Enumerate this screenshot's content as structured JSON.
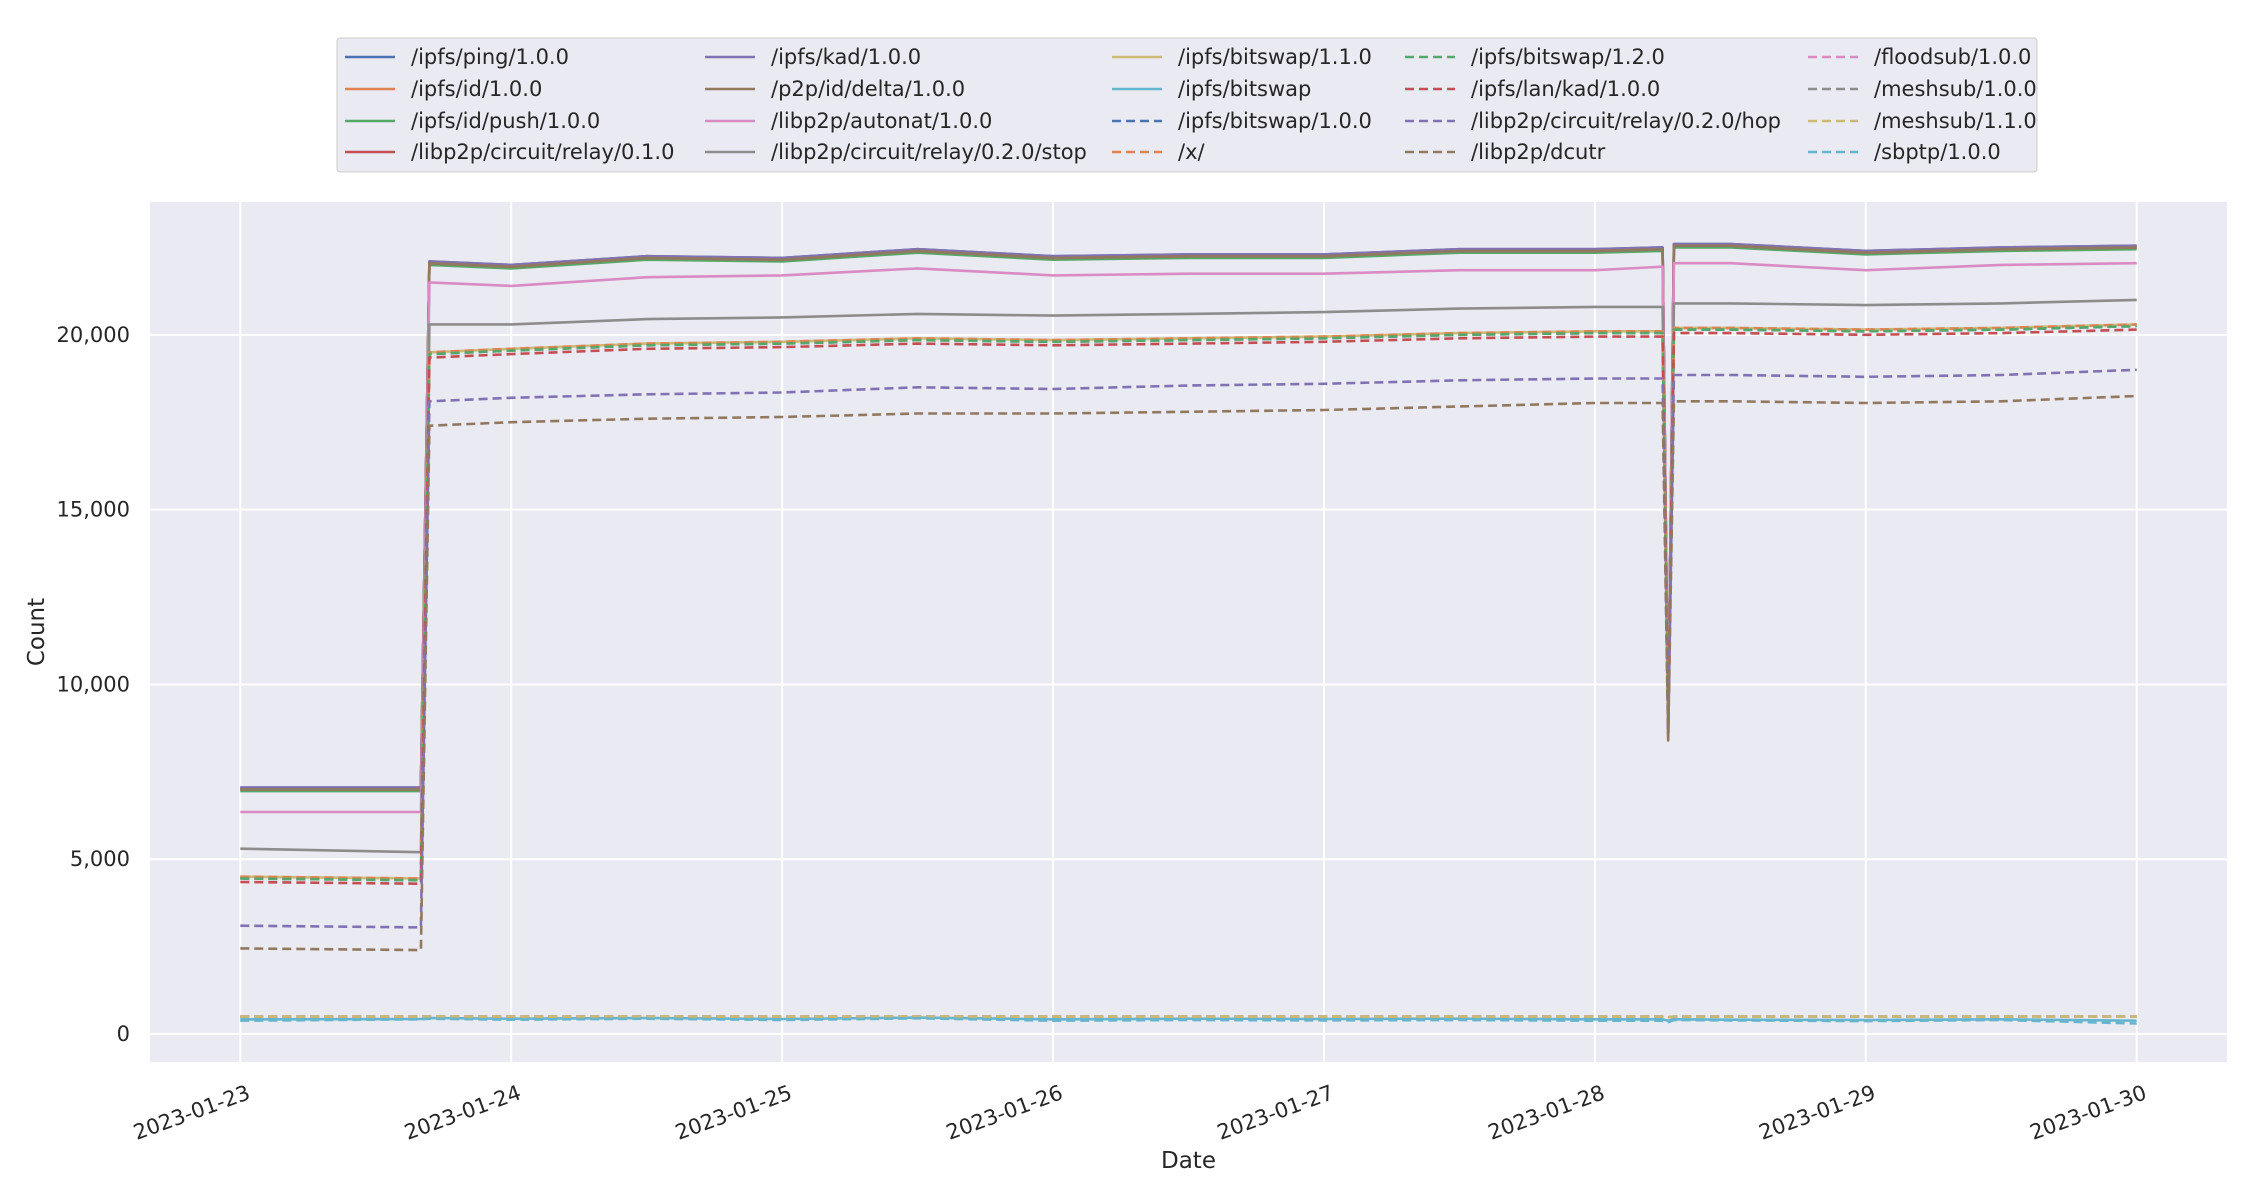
{
  "chart_data": {
    "type": "line",
    "title": "",
    "xlabel": "Date",
    "ylabel": "Count",
    "x_ticks": [
      "2023-01-23",
      "2023-01-24",
      "2023-01-25",
      "2023-01-26",
      "2023-01-27",
      "2023-01-28",
      "2023-01-29",
      "2023-01-30"
    ],
    "y_ticks": [
      0,
      5000,
      10000,
      15000,
      20000
    ],
    "y_tick_labels": [
      "0",
      "5,000",
      "10,000",
      "15,000",
      "20,000"
    ],
    "xlim": [
      "2023-01-22 16:00",
      "2023-01-30 08:00"
    ],
    "ylim": [
      -800,
      23800
    ],
    "grid": true,
    "legend_position": "top-center",
    "x": [
      "2023-01-23 00:00",
      "2023-01-23 16:00",
      "2023-01-23 16:45",
      "2023-01-24 00:00",
      "2023-01-24 12:00",
      "2023-01-25 00:00",
      "2023-01-25 12:00",
      "2023-01-26 00:00",
      "2023-01-26 12:00",
      "2023-01-27 00:00",
      "2023-01-27 12:00",
      "2023-01-28 00:00",
      "2023-01-28 06:00",
      "2023-01-28 06:30",
      "2023-01-28 07:00",
      "2023-01-28 12:00",
      "2023-01-29 00:00",
      "2023-01-29 12:00",
      "2023-01-30 00:00"
    ],
    "series": [
      {
        "name": "/ipfs/ping/1.0.0",
        "color": "#4c72b0",
        "dashed": false,
        "values": [
          7050,
          7050,
          22100,
          22000,
          22250,
          22200,
          22450,
          22250,
          22300,
          22300,
          22450,
          22450,
          22500,
          8700,
          22600,
          22600,
          22400,
          22500,
          22550
        ]
      },
      {
        "name": "/ipfs/id/1.0.0",
        "color": "#dd8452",
        "dashed": false,
        "values": [
          7000,
          7000,
          22050,
          21950,
          22200,
          22150,
          22400,
          22200,
          22250,
          22250,
          22400,
          22400,
          22450,
          8700,
          22550,
          22550,
          22350,
          22450,
          22500
        ]
      },
      {
        "name": "/ipfs/id/push/1.0.0",
        "color": "#55a868",
        "dashed": false,
        "values": [
          6950,
          6950,
          22000,
          21900,
          22150,
          22100,
          22350,
          22150,
          22200,
          22200,
          22350,
          22350,
          22400,
          8700,
          22500,
          22500,
          22300,
          22400,
          22450
        ]
      },
      {
        "name": "/libp2p/circuit/relay/0.1.0",
        "color": "#c44e52",
        "dashed": false,
        "values": [
          7000,
          7000,
          22050,
          21950,
          22200,
          22150,
          22400,
          22200,
          22250,
          22250,
          22400,
          22400,
          22450,
          8700,
          22550,
          22550,
          22350,
          22450,
          22500
        ]
      },
      {
        "name": "/ipfs/kad/1.0.0",
        "color": "#8172b3",
        "dashed": false,
        "values": [
          7050,
          7050,
          22100,
          22000,
          22250,
          22200,
          22450,
          22250,
          22300,
          22300,
          22450,
          22450,
          22500,
          8700,
          22600,
          22600,
          22400,
          22500,
          22550
        ]
      },
      {
        "name": "/p2p/id/delta/1.0.0",
        "color": "#937860",
        "dashed": false,
        "values": [
          7000,
          7000,
          22050,
          21950,
          22200,
          22150,
          22400,
          22200,
          22250,
          22250,
          22400,
          22400,
          22450,
          8700,
          22550,
          22550,
          22350,
          22450,
          22500
        ]
      },
      {
        "name": "/libp2p/autonat/1.0.0",
        "color": "#da8bc3",
        "dashed": false,
        "values": [
          6350,
          6350,
          21500,
          21400,
          21650,
          21700,
          21900,
          21700,
          21750,
          21750,
          21850,
          21850,
          21950,
          8700,
          22050,
          22050,
          21850,
          22000,
          22050
        ]
      },
      {
        "name": "/libp2p/circuit/relay/0.2.0/stop",
        "color": "#8c8c8c",
        "dashed": false,
        "values": [
          5300,
          5200,
          20300,
          20300,
          20450,
          20500,
          20600,
          20550,
          20600,
          20650,
          20750,
          20800,
          20800,
          8700,
          20900,
          20900,
          20850,
          20900,
          21000
        ]
      },
      {
        "name": "/ipfs/bitswap/1.1.0",
        "color": "#ccb974",
        "dashed": false,
        "values": [
          4500,
          4450,
          19500,
          19600,
          19750,
          19800,
          19900,
          19850,
          19900,
          19950,
          20050,
          20100,
          20100,
          8600,
          20200,
          20200,
          20150,
          20200,
          20300
        ]
      },
      {
        "name": "/ipfs/bitswap",
        "color": "#64b5cd",
        "dashed": false,
        "values": [
          420,
          430,
          460,
          440,
          460,
          430,
          470,
          420,
          440,
          430,
          440,
          420,
          420,
          380,
          420,
          410,
          400,
          420,
          380
        ]
      },
      {
        "name": "/ipfs/bitswap/1.0.0",
        "color": "#4c72b0",
        "dashed": true,
        "values": [
          4450,
          4400,
          19450,
          19550,
          19700,
          19750,
          19850,
          19800,
          19850,
          19900,
          20000,
          20050,
          20050,
          8600,
          20150,
          20150,
          20100,
          20150,
          20250
        ]
      },
      {
        "name": "/x/",
        "color": "#dd8452",
        "dashed": true,
        "values": [
          4500,
          4450,
          19500,
          19600,
          19750,
          19800,
          19900,
          19850,
          19900,
          19950,
          20050,
          20100,
          20100,
          8600,
          20200,
          20200,
          20150,
          20200,
          20300
        ]
      },
      {
        "name": "/ipfs/bitswap/1.2.0",
        "color": "#55a868",
        "dashed": true,
        "values": [
          4450,
          4400,
          19450,
          19550,
          19700,
          19750,
          19850,
          19800,
          19850,
          19900,
          20000,
          20050,
          20050,
          8600,
          20150,
          20150,
          20100,
          20150,
          20250
        ]
      },
      {
        "name": "/ipfs/lan/kad/1.0.0",
        "color": "#c44e52",
        "dashed": true,
        "values": [
          4350,
          4300,
          19350,
          19450,
          19600,
          19650,
          19750,
          19700,
          19750,
          19800,
          19900,
          19950,
          19950,
          8600,
          20050,
          20050,
          20000,
          20050,
          20150
        ]
      },
      {
        "name": "/libp2p/circuit/relay/0.2.0/hop",
        "color": "#8172b3",
        "dashed": true,
        "values": [
          3100,
          3050,
          18100,
          18200,
          18300,
          18350,
          18500,
          18450,
          18550,
          18600,
          18700,
          18750,
          18750,
          8500,
          18850,
          18850,
          18800,
          18850,
          19000
        ]
      },
      {
        "name": "/libp2p/dcutr",
        "color": "#937860",
        "dashed": true,
        "values": [
          2450,
          2400,
          17400,
          17500,
          17600,
          17650,
          17750,
          17750,
          17800,
          17850,
          17950,
          18050,
          18050,
          8400,
          18100,
          18100,
          18050,
          18100,
          18250
        ]
      },
      {
        "name": "/floodsub/1.0.0",
        "color": "#da8bc3",
        "dashed": true,
        "values": [
          500,
          500,
          500,
          500,
          500,
          500,
          500,
          500,
          500,
          500,
          500,
          500,
          500,
          480,
          500,
          500,
          500,
          500,
          500
        ]
      },
      {
        "name": "/meshsub/1.0.0",
        "color": "#8c8c8c",
        "dashed": true,
        "values": [
          500,
          500,
          500,
          500,
          500,
          500,
          500,
          500,
          500,
          500,
          500,
          500,
          500,
          480,
          500,
          500,
          500,
          500,
          500
        ]
      },
      {
        "name": "/meshsub/1.1.0",
        "color": "#ccb974",
        "dashed": true,
        "values": [
          500,
          500,
          500,
          500,
          500,
          500,
          500,
          500,
          500,
          500,
          500,
          500,
          500,
          480,
          500,
          500,
          500,
          500,
          500
        ]
      },
      {
        "name": "/sbptp/1.0.0",
        "color": "#64b5cd",
        "dashed": true,
        "values": [
          380,
          420,
          440,
          410,
          440,
          400,
          450,
          380,
          400,
          390,
          400,
          380,
          380,
          340,
          400,
          390,
          370,
          400,
          300
        ]
      }
    ]
  }
}
